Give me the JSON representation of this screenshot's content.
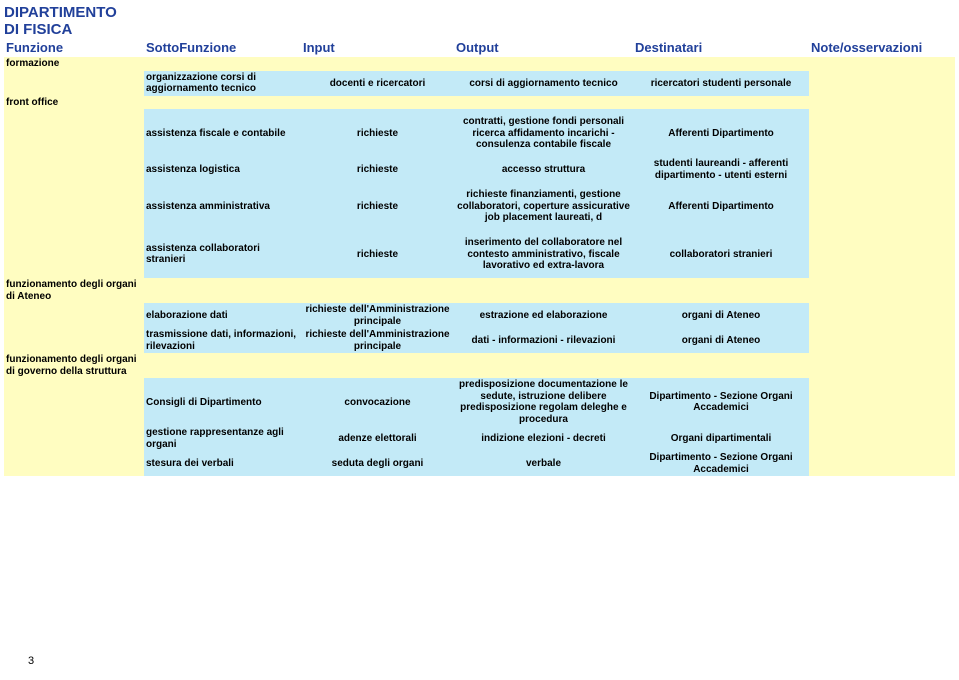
{
  "title_line1": "DIPARTIMENTO",
  "title_line2": "DI FISICA",
  "headers": {
    "funzione": "Funzione",
    "sottofunzione": "SottoFunzione",
    "input": "Input",
    "output": "Output",
    "destinatari": "Destinatari",
    "note": "Note/osservazioni"
  },
  "sections": [
    {
      "label": "formazione",
      "rows": [
        {
          "sotto": "organizzazione corsi di aggiornamento tecnico",
          "input": "docenti e ricercatori",
          "output": "corsi di aggiornamento tecnico",
          "dest": "ricercatori studenti personale"
        }
      ]
    },
    {
      "label": "front office",
      "rows": [
        {
          "sotto": "assistenza fiscale e contabile",
          "input": "richieste",
          "output": "contratti, gestione fondi personali ricerca\naffidamento incarichi - consulenza contabile fiscale",
          "dest": "Afferenti Dipartimento"
        },
        {
          "sotto": "assistenza logistica",
          "input": "richieste",
          "output": "accesso struttura",
          "dest": "studenti laureandi - afferenti dipartimento - utenti esterni"
        },
        {
          "sotto": "assistenza amministrativa",
          "input": "richieste",
          "output": "richieste finanziamenti, gestione collaboratori, coperture assicurative job placement laureati, d",
          "dest": "Afferenti Dipartimento"
        },
        {
          "sotto": "assistenza collaboratori stranieri",
          "input": "richieste",
          "output": "inserimento del collaboratore nel contesto amministrativo, fiscale lavorativo ed extra-lavora",
          "dest": "collaboratori stranieri"
        }
      ]
    },
    {
      "label": "funzionamento degli organi di Ateneo",
      "rows": [
        {
          "sotto": "elaborazione dati",
          "input": "richieste dell'Amministrazione principale",
          "output": "estrazione ed elaborazione",
          "dest": "organi di Ateneo"
        },
        {
          "sotto": "trasmissione dati, informazioni, rilevazioni",
          "input": "richieste dell'Amministrazione principale",
          "output": "dati - informazioni - rilevazioni",
          "dest": "organi di Ateneo"
        }
      ]
    },
    {
      "label": "funzionamento degli organi di governo della struttura",
      "rows": [
        {
          "sotto": "Consigli di Dipartimento",
          "input": "convocazione",
          "output": "predisposizione documentazione le sedute, istruzione delibere predisposizione regolam deleghe e procedura",
          "dest": "Dipartimento - Sezione Organi Accademici"
        },
        {
          "sotto": "gestione rappresentanze agli organi",
          "input": "adenze elettorali",
          "output": "indizione elezioni - decreti",
          "dest": "Organi  dipartimentali"
        },
        {
          "sotto": "stesura dei verbali",
          "input": "seduta degli organi",
          "output": "verbale",
          "dest": "Dipartimento - Sezione Organi Accademici"
        }
      ]
    }
  ],
  "page_number": "3",
  "colors": {
    "blue_header": "#21409a",
    "yellow_bg": "#fffdc1",
    "cyan_bg": "#c3eaf7"
  }
}
